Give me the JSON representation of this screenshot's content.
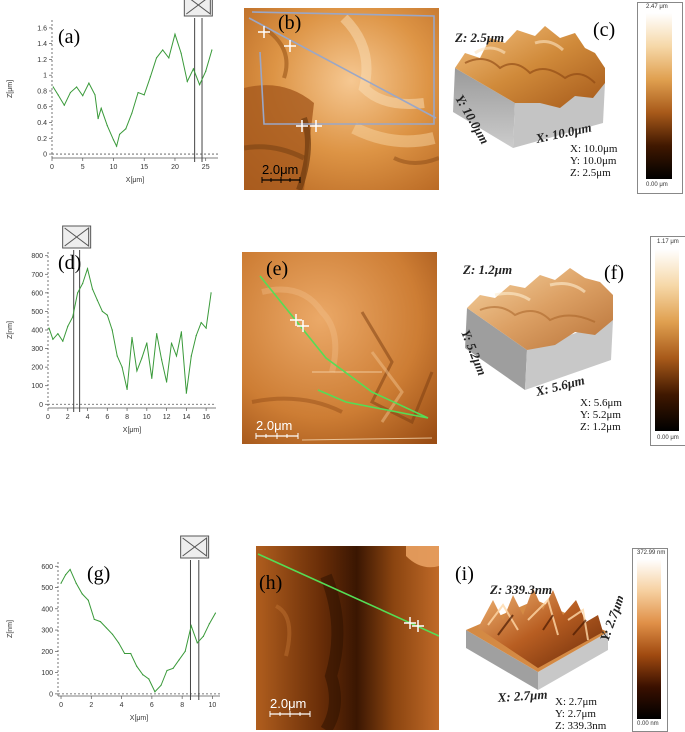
{
  "panels": {
    "a": {
      "letter": "(a)"
    },
    "b": {
      "letter": "(b)",
      "scale_bar": "2.0μm"
    },
    "c": {
      "letter": "(c)",
      "axis_x": "X: 10.0μm",
      "axis_y": "Y: 10.0μm",
      "axis_z": "Z: 2.5μm",
      "dims": [
        "X: 10.0μm",
        "Y: 10.0μm",
        "Z: 2.5μm"
      ],
      "colorbar_max": "2.47 μm",
      "colorbar_min": "0.00 μm"
    },
    "d": {
      "letter": "(d)"
    },
    "e": {
      "letter": "(e)",
      "scale_bar": "2.0μm"
    },
    "f": {
      "letter": "(f)",
      "axis_x": "X: 5.6μm",
      "axis_y": "Y: 5.2μm",
      "axis_z": "Z: 1.2μm",
      "dims": [
        "X: 5.6μm",
        "Y: 5.2μm",
        "Z: 1.2μm"
      ],
      "colorbar_max": "1.17 μm",
      "colorbar_min": "0.00 μm"
    },
    "g": {
      "letter": "(g)"
    },
    "h": {
      "letter": "(h)",
      "scale_bar": "2.0μm"
    },
    "i": {
      "letter": "(i)",
      "axis_x": "X: 2.7μm",
      "axis_y": "Y: 2.7μm",
      "axis_z": "Z: 339.3nm",
      "dims": [
        "X: 2.7μm",
        "Y: 2.7μm",
        "Z: 339.3nm"
      ],
      "colorbar_max": "372.99 nm",
      "colorbar_min": "0.00 nm"
    }
  },
  "colors": {
    "profile_line": "#3a9a3a",
    "cursor": "#9aa7c7",
    "profile_green": "#55dd55"
  },
  "chart_data": [
    {
      "type": "line",
      "panel": "a",
      "xlabel": "X[μm]",
      "ylabel": "Z[μm]",
      "xlim": [
        0,
        27
      ],
      "ylim": [
        -0.05,
        1.7
      ],
      "xticks": [
        0,
        5,
        10,
        15,
        20,
        25
      ],
      "yticks": [
        0,
        0.2,
        0.4,
        0.6,
        0.8,
        1,
        1.2,
        1.4,
        1.6
      ],
      "cursors": [
        23.2,
        24.4
      ],
      "x": [
        0.2,
        1,
        2,
        3,
        4,
        5,
        6,
        7,
        7.5,
        8,
        9,
        10,
        10.5,
        11,
        12,
        13,
        14,
        15,
        16,
        17,
        18,
        19,
        20,
        21,
        22,
        23,
        24,
        25,
        26
      ],
      "y": [
        0.85,
        0.75,
        0.62,
        0.78,
        0.85,
        0.74,
        0.9,
        0.75,
        0.45,
        0.58,
        0.36,
        0.18,
        0.1,
        0.25,
        0.32,
        0.52,
        0.78,
        0.75,
        0.98,
        1.22,
        1.32,
        1.22,
        1.52,
        1.28,
        0.92,
        1.08,
        0.88,
        1.05,
        1.32
      ]
    },
    {
      "type": "line",
      "panel": "d",
      "xlabel": "X[μm]",
      "ylabel": "Z[nm]",
      "xlim": [
        0,
        17
      ],
      "ylim": [
        -20,
        820
      ],
      "xticks": [
        0,
        2,
        4,
        6,
        8,
        10,
        12,
        14,
        16
      ],
      "yticks": [
        0,
        100,
        200,
        300,
        400,
        500,
        600,
        700,
        800
      ],
      "cursors": [
        2.6,
        3.2
      ],
      "x": [
        0.1,
        0.5,
        1,
        1.5,
        2,
        2.5,
        3,
        3.5,
        4,
        4.5,
        5,
        5.5,
        6,
        6.5,
        7,
        7.5,
        8,
        8.5,
        9,
        9.5,
        10,
        10.5,
        11,
        11.5,
        12,
        12.5,
        13,
        13.5,
        14,
        14.5,
        15,
        15.5,
        16,
        16.5
      ],
      "y": [
        410,
        350,
        380,
        340,
        420,
        470,
        600,
        650,
        730,
        620,
        560,
        500,
        480,
        400,
        260,
        200,
        80,
        360,
        180,
        250,
        330,
        140,
        380,
        240,
        120,
        330,
        260,
        390,
        60,
        260,
        370,
        440,
        410,
        600
      ]
    },
    {
      "type": "line",
      "panel": "g",
      "xlabel": "X[μm]",
      "ylabel": "Z[nm]",
      "xlim": [
        -0.2,
        10.5
      ],
      "ylim": [
        -10,
        620
      ],
      "xticks": [
        0,
        2,
        4,
        6,
        8,
        10
      ],
      "yticks": [
        0,
        100,
        200,
        300,
        400,
        500,
        600
      ],
      "cursors": [
        8.55,
        9.1
      ],
      "x": [
        0,
        0.3,
        0.6,
        1,
        1.4,
        1.8,
        2.2,
        2.6,
        3,
        3.4,
        3.8,
        4.2,
        4.6,
        5,
        5.4,
        5.8,
        6.2,
        6.6,
        7,
        7.4,
        7.8,
        8.2,
        8.6,
        9,
        9.4,
        9.8,
        10.2
      ],
      "y": [
        520,
        560,
        585,
        520,
        470,
        440,
        350,
        340,
        310,
        280,
        240,
        190,
        190,
        130,
        90,
        70,
        10,
        40,
        110,
        120,
        160,
        200,
        320,
        240,
        270,
        330,
        380
      ]
    }
  ]
}
